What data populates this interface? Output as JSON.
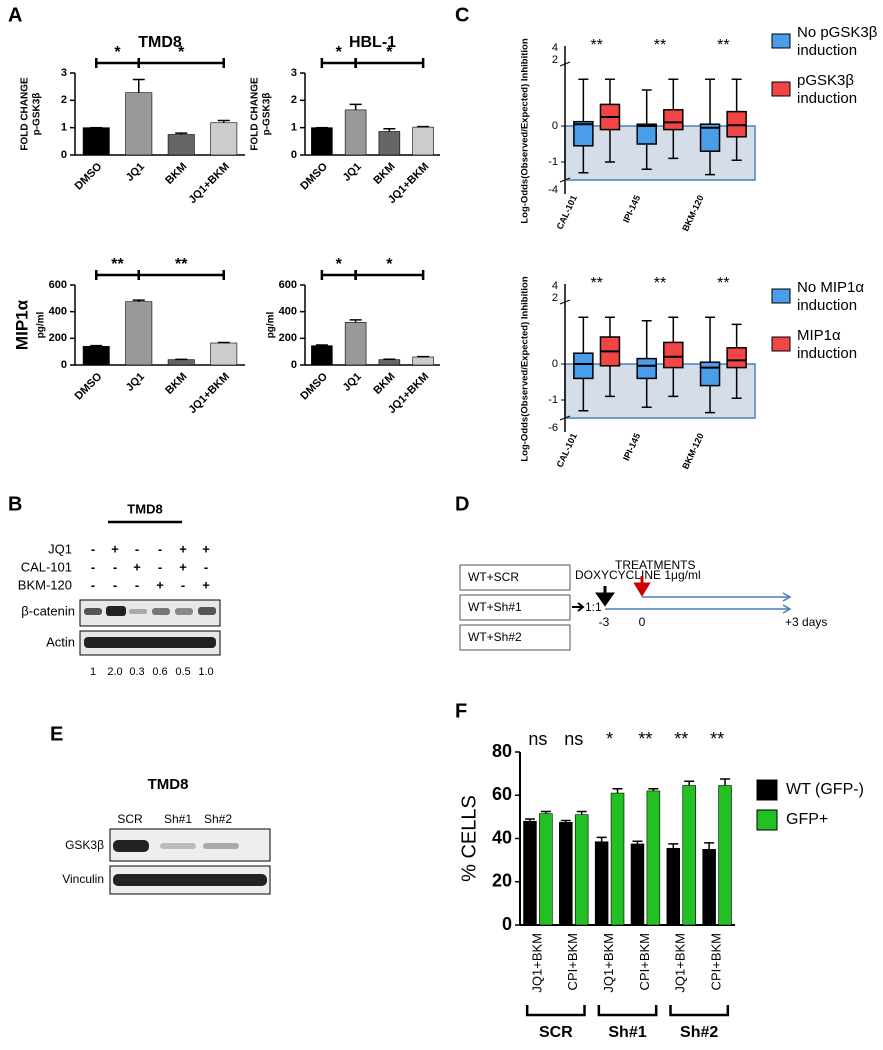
{
  "panel_labels": [
    "A",
    "B",
    "C",
    "D",
    "E",
    "F"
  ],
  "chart_data": [
    {
      "type": "bar",
      "title": "TMD8",
      "ylabel": [
        "FOLD CHANGE",
        "p-GSK3β"
      ],
      "categories": [
        "DMSO",
        "JQ1",
        "BKM",
        "JQ1+BKM"
      ],
      "values": [
        1,
        2.28,
        0.75,
        1.18
      ],
      "errors": [
        0,
        0.48,
        0.05,
        0.08
      ],
      "colors": [
        "#000000",
        "#999999",
        "#666666",
        "#cccccc"
      ],
      "ylim": [
        0,
        3
      ],
      "yticks": [
        0,
        1,
        2,
        3
      ],
      "significance": [
        "*",
        "*"
      ]
    },
    {
      "type": "bar",
      "title": "HBL-1",
      "ylabel": [
        "FOLD CHANGE",
        "p-GSK3β"
      ],
      "categories": [
        "DMSO",
        "JQ1",
        "BKM",
        "JQ1+BKM"
      ],
      "values": [
        1,
        1.65,
        0.86,
        1.02
      ],
      "errors": [
        0,
        0.2,
        0.1,
        0.02
      ],
      "colors": [
        "#000000",
        "#999999",
        "#666666",
        "#cccccc"
      ],
      "ylim": [
        0,
        3
      ],
      "yticks": [
        0,
        1,
        2,
        3
      ],
      "significance": [
        "*",
        "*"
      ]
    },
    {
      "type": "bar",
      "side_label": "MIP1α",
      "ylabel": [
        "pg/ml"
      ],
      "categories": [
        "DMSO",
        "JQ1",
        "BKM",
        "JQ1+BKM"
      ],
      "values": [
        140,
        475,
        40,
        165
      ],
      "errors": [
        5,
        12,
        2,
        4
      ],
      "colors": [
        "#000000",
        "#999999",
        "#666666",
        "#cccccc"
      ],
      "ylim": [
        0,
        600
      ],
      "yticks": [
        0,
        200,
        400,
        600
      ],
      "significance": [
        "**",
        "**"
      ]
    },
    {
      "type": "bar",
      "ylabel": [
        "pg/ml"
      ],
      "categories": [
        "DMSO",
        "JQ1",
        "BKM",
        "JQ1+BKM"
      ],
      "values": [
        145,
        320,
        40,
        60
      ],
      "errors": [
        5,
        18,
        3,
        3
      ],
      "colors": [
        "#000000",
        "#999999",
        "#666666",
        "#cccccc"
      ],
      "ylim": [
        0,
        600
      ],
      "yticks": [
        0,
        200,
        400,
        600
      ],
      "significance": [
        "*",
        "*"
      ]
    },
    {
      "type": "box",
      "ylabel": "Log-Odds(Observed/Expected) Inhibition",
      "categories": [
        "CAL-101",
        "IPI-145",
        "BKM-120"
      ],
      "series": [
        {
          "name": "No pGSK3β induction",
          "color": "#4a9de8",
          "whisker_low": [
            -1.3,
            -1.2,
            -1.35
          ],
          "q1": [
            -0.55,
            -0.5,
            -0.7
          ],
          "median": [
            0.05,
            0,
            -0.05
          ],
          "q3": [
            0.12,
            0.05,
            0.05
          ],
          "whisker_high": [
            1.3,
            1.0,
            1.3
          ]
        },
        {
          "name": "pGSK3β induction",
          "color": "#f24545",
          "whisker_low": [
            -1.0,
            -0.9,
            -0.95
          ],
          "q1": [
            -0.1,
            -0.1,
            -0.3
          ],
          "median": [
            0.25,
            0.1,
            0.02
          ],
          "q3": [
            0.6,
            0.45,
            0.4
          ],
          "whisker_high": [
            1.3,
            1.3,
            1.3
          ]
        }
      ],
      "ylim": [
        -1.5,
        1.5
      ],
      "yticks": [
        -1,
        0
      ],
      "break_labels_top": [
        "4",
        "2"
      ],
      "break_labels_bottom": [
        "-4"
      ],
      "significance": [
        "**",
        "**",
        "**"
      ]
    },
    {
      "type": "box",
      "ylabel": "Log-Odds(Observed/Expected) Inhibition",
      "categories": [
        "CAL-101",
        "IPI-145",
        "BKM-120"
      ],
      "series": [
        {
          "name": "No MIP1α induction",
          "color": "#4a9de8",
          "whisker_low": [
            -1.3,
            -1.2,
            -1.35
          ],
          "q1": [
            -0.4,
            -0.4,
            -0.6
          ],
          "median": [
            0,
            -0.05,
            -0.1
          ],
          "q3": [
            0.3,
            0.15,
            0.05
          ],
          "whisker_high": [
            1.3,
            1.2,
            1.3
          ]
        },
        {
          "name": "MIP1α induction",
          "color": "#f24545",
          "whisker_low": [
            -0.9,
            -0.9,
            -0.95
          ],
          "q1": [
            -0.05,
            -0.1,
            -0.1
          ],
          "median": [
            0.35,
            0.2,
            0.1
          ],
          "q3": [
            0.75,
            0.6,
            0.45
          ],
          "whisker_high": [
            1.3,
            1.3,
            1.1
          ]
        }
      ],
      "ylim": [
        -1.5,
        1.5
      ],
      "yticks": [
        -1,
        0
      ],
      "break_labels_top": [
        "4",
        "2"
      ],
      "break_labels_bottom": [
        "-6"
      ],
      "significance": [
        "**",
        "**",
        "**"
      ]
    },
    {
      "type": "bar",
      "ylabel": "% CELLS",
      "categories": [
        "JQ1+BKM",
        "CPI+BKM",
        "JQ1+BKM",
        "CPI+BKM",
        "JQ1+BKM",
        "CPI+BKM"
      ],
      "series": [
        {
          "name": "WT (GFP-)",
          "color": "#000000",
          "values": [
            48,
            47.5,
            38.5,
            37.5,
            35.5,
            35
          ],
          "errors": [
            1,
            0.8,
            2,
            1.2,
            2,
            3
          ]
        },
        {
          "name": "GFP+",
          "color": "#22c022",
          "values": [
            51.5,
            51,
            61,
            62,
            64.5,
            64.5
          ],
          "errors": [
            1,
            1.5,
            2,
            1,
            2,
            3
          ]
        }
      ],
      "ylim": [
        0,
        80
      ],
      "yticks": [
        0,
        20,
        40,
        60,
        80
      ],
      "significance": [
        "ns",
        "ns",
        "*",
        "**",
        "**",
        "**"
      ],
      "group_labels": [
        "SCR",
        "Sh#1",
        "Sh#2"
      ]
    }
  ],
  "blot_B": {
    "title": "TMD8",
    "rows": [
      {
        "label": "JQ1",
        "signs": [
          "-",
          "+",
          "-",
          "-",
          "+",
          "+"
        ]
      },
      {
        "label": "CAL-101",
        "signs": [
          "-",
          "-",
          "+",
          "-",
          "+",
          "-"
        ]
      },
      {
        "label": "BKM-120",
        "signs": [
          "-",
          "-",
          "-",
          "+",
          "-",
          "+"
        ]
      }
    ],
    "bands": [
      "β-catenin",
      "Actin"
    ],
    "quantification": [
      "1",
      "2.0",
      "0.3",
      "0.6",
      "0.5",
      "1.0"
    ]
  },
  "diagram_D": {
    "groups": [
      "WT+SCR",
      "WT+Sh#1",
      "WT+Sh#2"
    ],
    "ratio": "1:1",
    "dox": "DOXYCYCLINE 1μg/ml",
    "treatments": "TREATMENTS",
    "timepoints": [
      "-3",
      "0",
      "+3 days"
    ]
  },
  "blot_E": {
    "title": "TMD8",
    "lanes": [
      "SCR",
      "Sh#1",
      "Sh#2"
    ],
    "bands": [
      "GSK3β",
      "Vinculin"
    ]
  }
}
